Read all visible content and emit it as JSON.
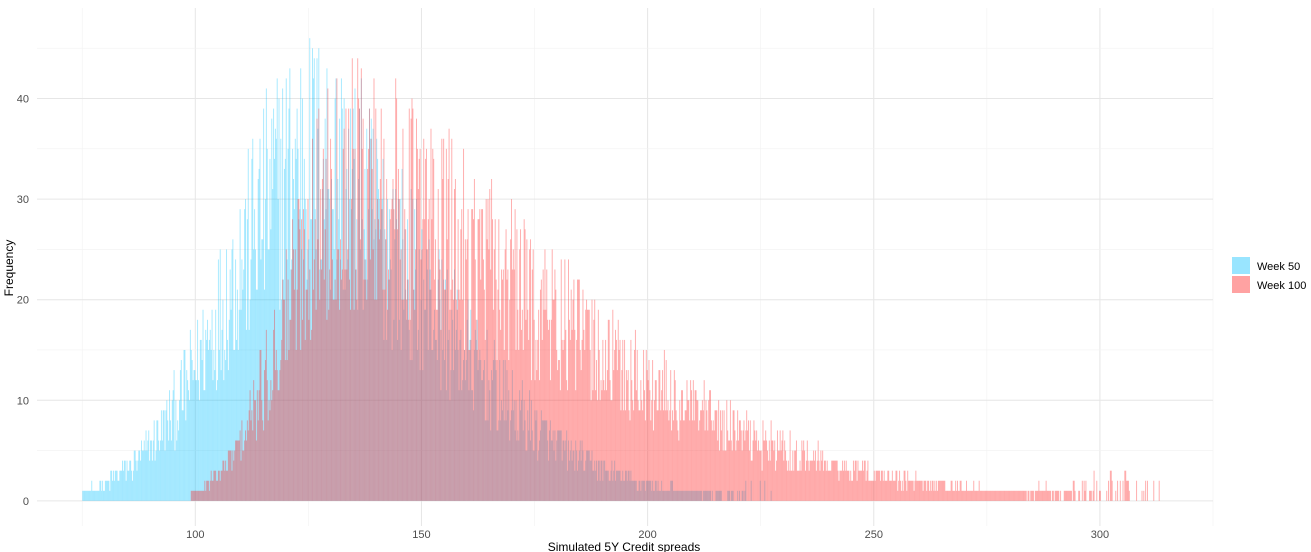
{
  "chart_data": {
    "type": "histogram",
    "title": "",
    "xlabel": "Simulated 5Y Credit spreads",
    "ylabel": "Frequency",
    "xlim": [
      65,
      325
    ],
    "ylim": [
      -2.5,
      49
    ],
    "x_ticks": [
      100,
      150,
      200,
      250,
      300
    ],
    "y_ticks": [
      0,
      10,
      20,
      30,
      40
    ],
    "grid": true,
    "legend_position": "right",
    "bin_width": 0.2,
    "series": [
      {
        "name": "Week 50",
        "color": "#00BFFF",
        "alpha": 0.35,
        "approx_min": 75,
        "approx_peak_x": 126,
        "approx_max": 228,
        "approx_peak_frequency": 47
      },
      {
        "name": "Week 100",
        "color": "#FF3030",
        "alpha": 0.4,
        "approx_min": 99,
        "approx_peak_x": 133,
        "approx_max": 313,
        "approx_peak_frequency": 44
      }
    ]
  }
}
